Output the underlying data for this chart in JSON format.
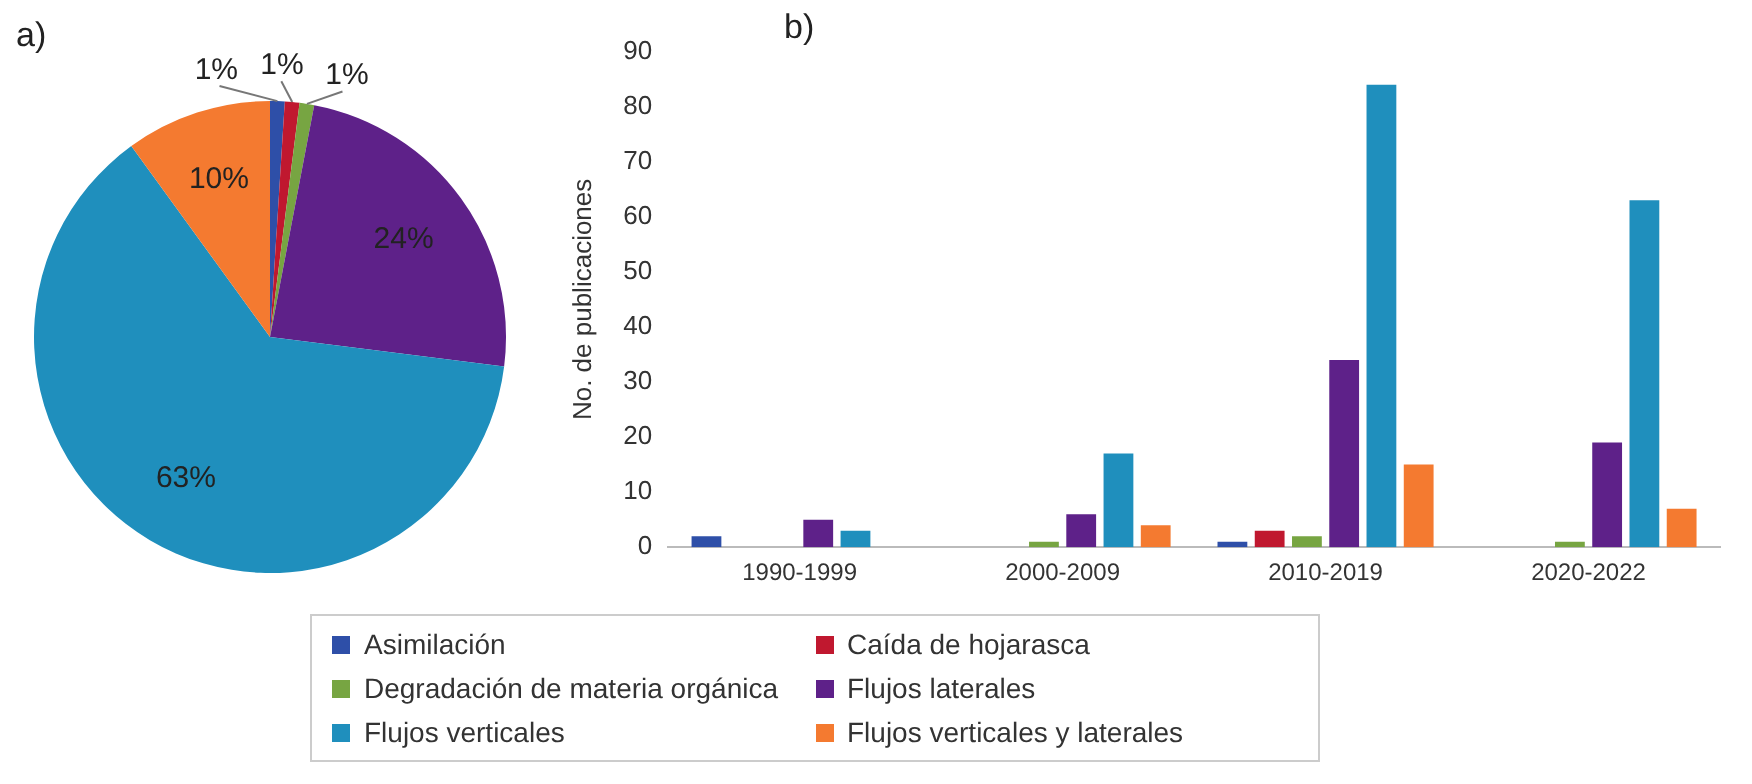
{
  "chart_data": [
    {
      "type": "pie",
      "title": "a)",
      "categories": [
        "Asimilación",
        "Caída de hojarasca",
        "Degradación de materia orgánica",
        "Flujos laterales",
        "Flujos verticales",
        "Flujos verticales y laterales"
      ],
      "values": [
        1,
        1,
        1,
        24,
        63,
        10
      ],
      "legend": "bottom",
      "colors": [
        "#2e4fa8",
        "#c0182f",
        "#77a542",
        "#5e2189",
        "#1f8fbd",
        "#f47a30"
      ],
      "value_labels": [
        "1%",
        "1%",
        "1%",
        "24%",
        "63%",
        "10%"
      ]
    },
    {
      "type": "bar",
      "title": "b)",
      "ylabel": "No. de publicaciones",
      "categories": [
        "1990-1999",
        "2000-2009",
        "2010-2019",
        "2020-2022"
      ],
      "ylim": [
        0,
        90
      ],
      "yticks": [
        0,
        10,
        20,
        30,
        40,
        50,
        60,
        70,
        80,
        90
      ],
      "grid": false,
      "series": [
        {
          "color": "#2e4fa8",
          "values": [
            2,
            0,
            1,
            0
          ]
        },
        {
          "color": "#c0182f",
          "values": [
            0,
            0,
            3,
            0
          ]
        },
        {
          "color": "#77a542",
          "values": [
            0,
            1,
            2,
            1
          ]
        },
        {
          "color": "#5e2189",
          "values": [
            5,
            6,
            34,
            19
          ]
        },
        {
          "color": "#1f8fbd",
          "values": [
            3,
            17,
            84,
            63
          ]
        },
        {
          "color": "#f47a30",
          "values": [
            0,
            4,
            15,
            7
          ]
        }
      ]
    }
  ]
}
